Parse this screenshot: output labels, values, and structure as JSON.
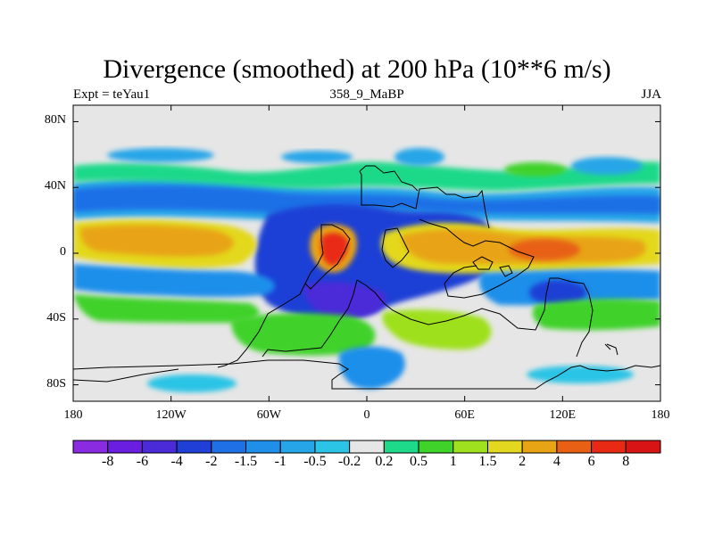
{
  "chart_data": {
    "type": "heatmap",
    "title": "Divergence (smoothed) at 200 hPa (10**6 m/s)",
    "subtitle_left": "Expt = teYau1",
    "subtitle_center": "358_9_MaBP",
    "subtitle_right": "JJA",
    "x_range": [
      -180,
      180
    ],
    "y_range": [
      -90,
      90
    ],
    "x_ticks": [
      {
        "value": -180,
        "label": "180"
      },
      {
        "value": -120,
        "label": "120W"
      },
      {
        "value": -60,
        "label": "60W"
      },
      {
        "value": 0,
        "label": "0"
      },
      {
        "value": 60,
        "label": "60E"
      },
      {
        "value": 120,
        "label": "120E"
      },
      {
        "value": 180,
        "label": "180"
      }
    ],
    "y_ticks": [
      {
        "value": 80,
        "label": "80N"
      },
      {
        "value": 40,
        "label": "40N"
      },
      {
        "value": 0,
        "label": "0"
      },
      {
        "value": -40,
        "label": "40S"
      },
      {
        "value": -80,
        "label": "80S"
      }
    ],
    "colorbar": {
      "labels": [
        "-8",
        "-6",
        "-4",
        "-2",
        "-1.5",
        "-1",
        "-0.5",
        "-0.2",
        "0.2",
        "0.5",
        "1",
        "1.5",
        "2",
        "4",
        "6",
        "8"
      ],
      "colors": [
        "#8a2be2",
        "#6a1ee0",
        "#4b2ad8",
        "#1f3fd6",
        "#1f6fe6",
        "#1f8fea",
        "#26a6e8",
        "#2bc4e6",
        "#e6e6e6",
        "#1fd98a",
        "#3fd22a",
        "#9fe01f",
        "#e3d81f",
        "#e8a414",
        "#e86014",
        "#e82a14",
        "#d81414"
      ]
    }
  }
}
